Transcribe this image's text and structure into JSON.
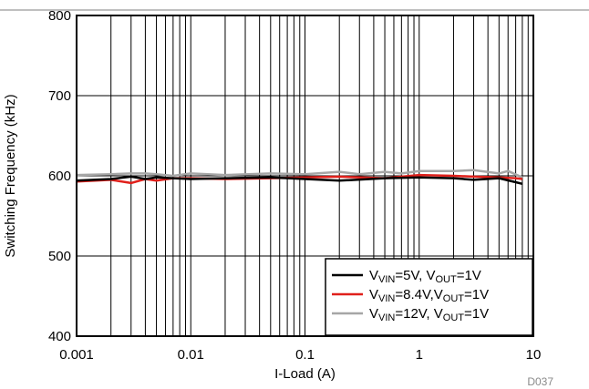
{
  "chart_data": {
    "type": "line",
    "title": "",
    "xlabel": "I-Load (A)",
    "ylabel": "Switching Frequency (kHz)",
    "x_scale": "log",
    "xlim": [
      0.001,
      10
    ],
    "ylim": [
      400,
      800
    ],
    "x_ticks": [
      0.001,
      0.01,
      0.1,
      1,
      10
    ],
    "x_tick_labels": [
      "0.001",
      "0.01",
      "0.1",
      "1",
      "10"
    ],
    "y_ticks": [
      400,
      500,
      600,
      700,
      800
    ],
    "y_tick_labels": [
      "400",
      "500",
      "600",
      "700",
      "800"
    ],
    "grid": true,
    "legend_position": "bottom-right",
    "figure_id": "D037",
    "series": [
      {
        "name": "VVIN=5V,  VOUT=1V",
        "legend": {
          "v1": "V",
          "s1": "VIN",
          "t1": "=5V,  ",
          "v2": "V",
          "s2": "OUT",
          "t2": "=1V"
        },
        "color": "#000000",
        "x": [
          0.001,
          0.002,
          0.003,
          0.004,
          0.005,
          0.007,
          0.01,
          0.02,
          0.05,
          0.1,
          0.2,
          0.5,
          1,
          2,
          3,
          5,
          7,
          8
        ],
        "y": [
          594,
          596,
          599,
          596,
          598,
          597,
          596,
          597,
          598,
          596,
          594,
          597,
          598,
          597,
          595,
          597,
          592,
          590
        ]
      },
      {
        "name": "VVIN=8.4V,VOUT=1V",
        "legend": {
          "v1": "V",
          "s1": "VIN",
          "t1": "=8.4V,",
          "v2": "V",
          "s2": "OUT",
          "t2": "=1V"
        },
        "color": "#e0201b",
        "x": [
          0.001,
          0.002,
          0.003,
          0.004,
          0.005,
          0.007,
          0.01,
          0.02,
          0.05,
          0.1,
          0.2,
          0.5,
          1,
          2,
          3,
          5,
          7,
          8
        ],
        "y": [
          593,
          595,
          591,
          596,
          594,
          597,
          597,
          596,
          597,
          598,
          599,
          597,
          601,
          600,
          599,
          598,
          597,
          596
        ]
      },
      {
        "name": "VVIN=12V, VOUT=1V",
        "legend": {
          "v1": "V",
          "s1": "VIN",
          "t1": "=12V, ",
          "v2": "V",
          "s2": "OUT",
          "t2": "=1V"
        },
        "color": "#a6a6a6",
        "x": [
          0.001,
          0.002,
          0.003,
          0.004,
          0.005,
          0.007,
          0.01,
          0.02,
          0.05,
          0.1,
          0.2,
          0.3,
          0.5,
          0.7,
          1,
          2,
          3,
          5,
          6,
          8
        ],
        "y": [
          601,
          602,
          603,
          603,
          602,
          600,
          603,
          601,
          603,
          602,
          605,
          602,
          605,
          603,
          606,
          606,
          607,
          603,
          606,
          598
        ]
      }
    ]
  }
}
